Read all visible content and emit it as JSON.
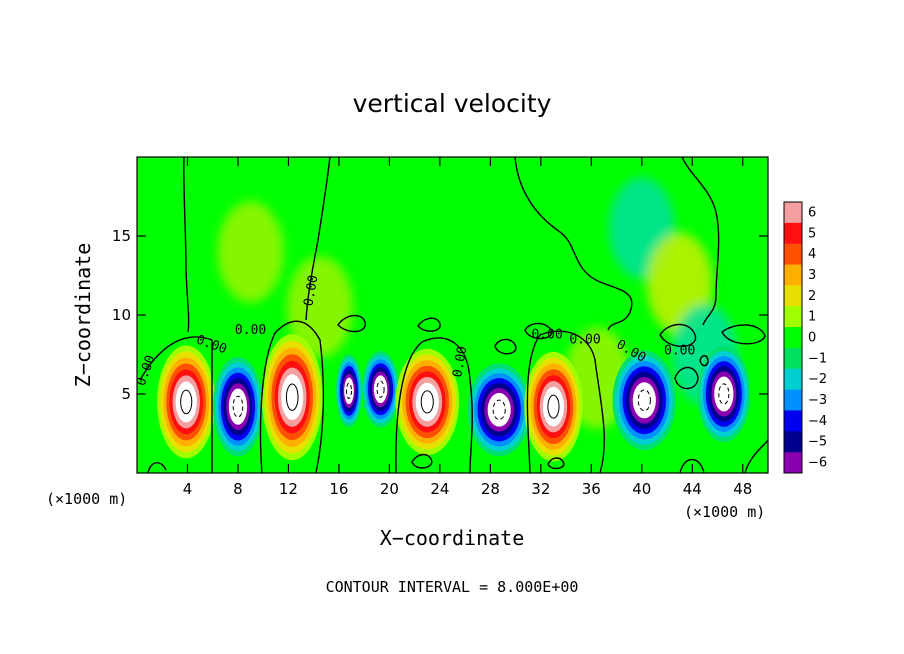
{
  "chart_data": {
    "type": "heatmap",
    "title": "vertical velocity",
    "xlabel": "X−coordinate",
    "ylabel": "Z−coordinate",
    "x_unit": "(×1000 m)",
    "y_unit": "(×1000 m)",
    "xlim": [
      0,
      50
    ],
    "ylim": [
      0,
      20
    ],
    "x_ticks": [
      "4",
      "8",
      "12",
      "16",
      "20",
      "24",
      "28",
      "32",
      "36",
      "40",
      "44",
      "48"
    ],
    "x_tick_values": [
      4,
      8,
      12,
      16,
      20,
      24,
      28,
      32,
      36,
      40,
      44,
      48
    ],
    "y_ticks": [
      "5",
      "10",
      "15"
    ],
    "y_tick_values": [
      5,
      10,
      15
    ],
    "colorbar": {
      "ticks": [
        "6",
        "5",
        "4",
        "3",
        "2",
        "1",
        "0",
        "−1",
        "−2",
        "−3",
        "−4",
        "−5",
        "−6"
      ],
      "values": [
        6,
        5,
        4,
        3,
        2,
        1,
        0,
        -1,
        -2,
        -3,
        -4,
        -5,
        -6
      ],
      "colors": [
        "#f4a0a0",
        "#ff1010",
        "#ff5000",
        "#ffb000",
        "#e8e000",
        "#a0ff00",
        "#00ff00",
        "#00e060",
        "#00d0d0",
        "#0090ff",
        "#0000f0",
        "#00008f",
        "#8a00b0"
      ]
    },
    "contour_label": "0.00",
    "footer": "CONTOUR INTERVAL = 8.000E+00",
    "cells": [
      {
        "x": 3.9,
        "z": 4.5,
        "w": 1,
        "rx": 2.2,
        "rz": 3.4
      },
      {
        "x": 8.0,
        "z": 4.2,
        "w": -1,
        "rx": 1.9,
        "rz": 3.0
      },
      {
        "x": 12.3,
        "z": 4.8,
        "w": 1,
        "rx": 2.3,
        "rz": 3.8
      },
      {
        "x": 16.8,
        "z": 5.2,
        "w": -1,
        "rx": 1.0,
        "rz": 2.2
      },
      {
        "x": 19.3,
        "z": 5.3,
        "w": -1,
        "rx": 1.4,
        "rz": 2.3
      },
      {
        "x": 23.0,
        "z": 4.5,
        "w": 1,
        "rx": 2.4,
        "rz": 3.2
      },
      {
        "x": 28.7,
        "z": 4.0,
        "w": -1,
        "rx": 2.4,
        "rz": 2.8
      },
      {
        "x": 33.0,
        "z": 4.2,
        "w": 1,
        "rx": 2.2,
        "rz": 3.3
      },
      {
        "x": 40.2,
        "z": 4.6,
        "w": -1,
        "rx": 2.4,
        "rz": 3.0
      },
      {
        "x": 46.5,
        "z": 5.0,
        "w": -1,
        "rx": 2.0,
        "rz": 2.9
      }
    ],
    "weak_blobs": [
      {
        "x": 9.0,
        "z": 14.0,
        "v": 0.4
      },
      {
        "x": 14.5,
        "z": 10.5,
        "v": 0.6
      },
      {
        "x": 40.0,
        "z": 15.5,
        "v": -0.3
      },
      {
        "x": 43.0,
        "z": 12.0,
        "v": 0.9
      },
      {
        "x": 45.0,
        "z": 7.5,
        "v": -0.6
      },
      {
        "x": 36.5,
        "z": 6.0,
        "v": 0.4
      }
    ]
  }
}
